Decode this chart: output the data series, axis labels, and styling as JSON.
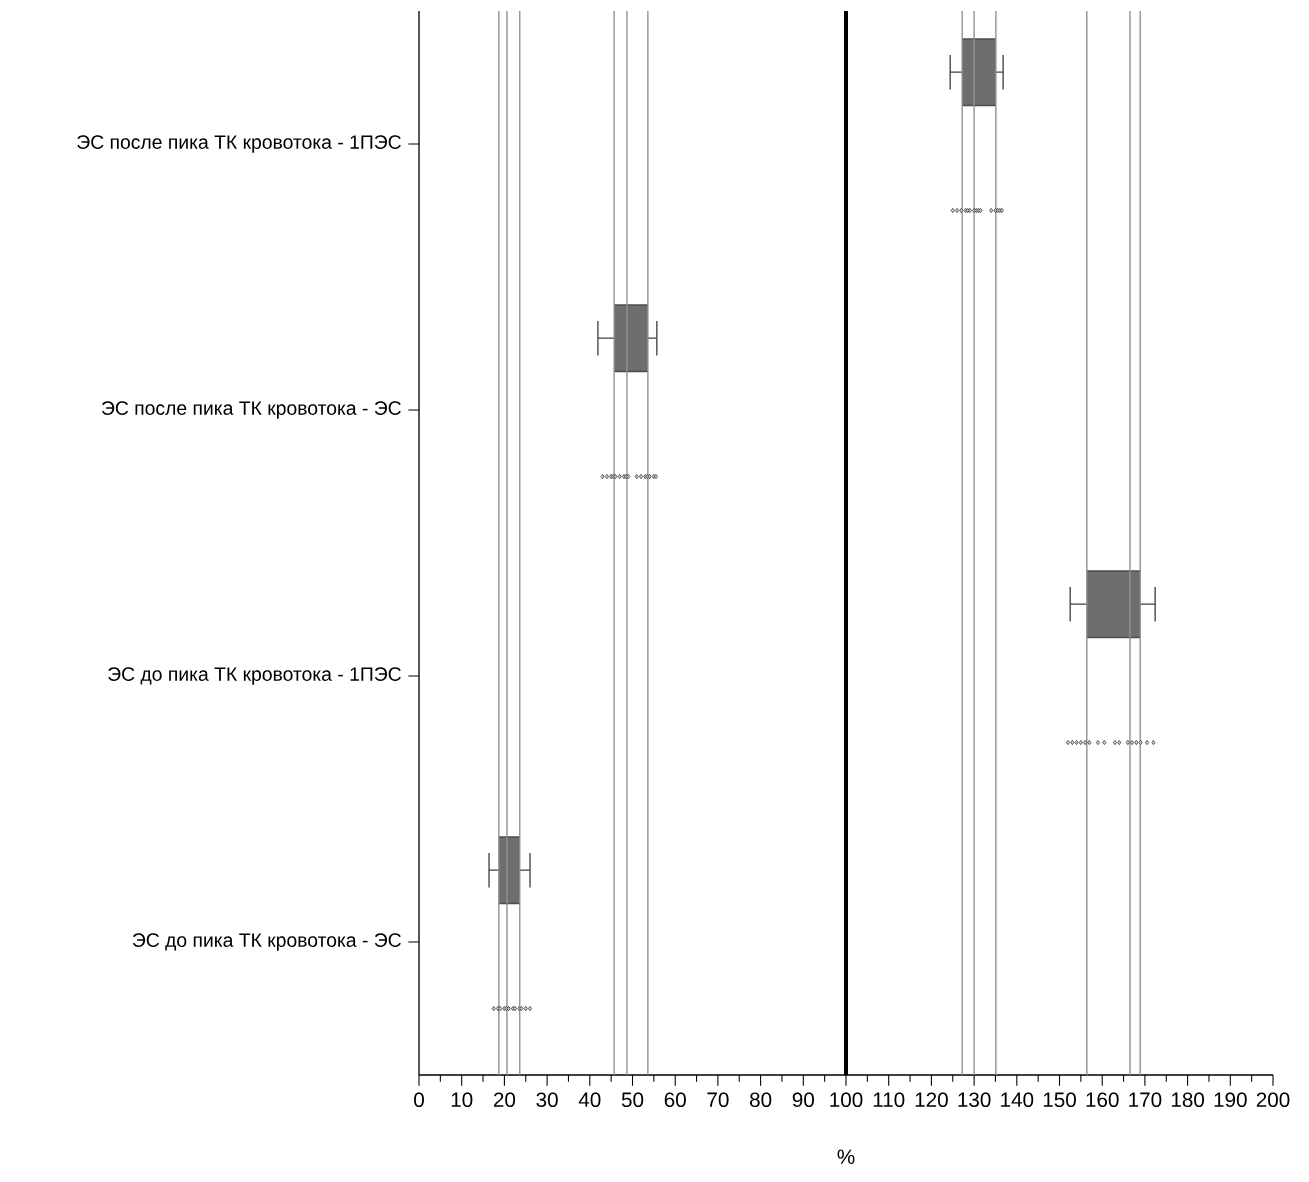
{
  "chart_data": {
    "type": "box",
    "orientation": "horizontal",
    "xlabel": "%",
    "categories": [
      "ЭС после пика ТК кровотока - 1ПЭС",
      "ЭС после пика ТК кровотока - ЭС",
      "ЭС до пика ТК кровотока - 1ПЭС",
      "ЭС до пика ТК кровотока - ЭС"
    ],
    "xlim": [
      0,
      200
    ],
    "xticks": [
      0,
      10,
      20,
      30,
      40,
      50,
      60,
      70,
      80,
      90,
      100,
      110,
      120,
      130,
      140,
      150,
      160,
      170,
      180,
      190,
      200
    ],
    "series": [
      {
        "color": "#6e6e6e",
        "boxes": [
          {
            "low": 124.4,
            "q1": 127.2,
            "median": 130,
            "q3": 135.1,
            "high": 136.8
          },
          {
            "low": 41.9,
            "q1": 45.7,
            "median": 48.7,
            "q3": 53.6,
            "high": 55.7
          },
          {
            "low": 152.5,
            "q1": 156.4,
            "median": 166.5,
            "q3": 168.9,
            "high": 172.4
          },
          {
            "low": 16.4,
            "q1": 18.7,
            "median": 20.6,
            "q3": 23.6,
            "high": 26
          }
        ]
      },
      {
        "type": "scatter",
        "color": "#d4d4d4",
        "marker": "diamond",
        "x": [
          "ЭС после пика ТК кровотока - 1ПЭС",
          "ЭС после пика ТК кровотока - 1ПЭС",
          "ЭС после пика ТК кровотока - 1ПЭС",
          "ЭС после пика ТК кровотока - 1ПЭС",
          "ЭС после пика ТК кровотока - 1ПЭС",
          "ЭС после пика ТК кровотока - 1ПЭС",
          "ЭС после пика ТК кровотока - 1ПЭС",
          "ЭС после пика ТК кровотока - 1ПЭС",
          "ЭС после пика ТК кровотока - 1ПЭС",
          "ЭС после пика ТК кровотока - 1ПЭС",
          "ЭС после пика ТК кровотока - 1ПЭС",
          "ЭС после пика ТК кровотока - 1ПЭС",
          "ЭС после пика ТК кровотока - 1ПЭС",
          "ЭС после пика ТК кровотока - 1ПЭС",
          "ЭС после пика ТК кровотока - 1ПЭС",
          "ЭС после пика ТК кровотока - ЭС",
          "ЭС после пика ТК кровотока - ЭС",
          "ЭС после пика ТК кровотока - ЭС",
          "ЭС после пика ТК кровотока - ЭС",
          "ЭС после пика ТК кровотока - ЭС",
          "ЭС после пика ТК кровотока - ЭС",
          "ЭС после пика ТК кровотока - ЭС",
          "ЭС после пика ТК кровотока - ЭС",
          "ЭС после пика ТК кровотока - ЭС",
          "ЭС после пика ТК кровотока - ЭС",
          "ЭС после пика ТК кровотока - ЭС",
          "ЭС после пика ТК кровотока - ЭС",
          "ЭС после пика ТК кровотока - ЭС",
          "ЭС после пика ТК кровотока - ЭС",
          "ЭС после пика ТК кровотока - ЭС",
          "ЭС после пика ТК кровотока - ЭС",
          "ЭС до пика ТК кровотока - 1ПЭС",
          "ЭС до пика ТК кровотока - 1ПЭС",
          "ЭС до пика ТК кровотока - 1ПЭС",
          "ЭС до пика ТК кровотока - 1ПЭС",
          "ЭС до пика ТК кровотока - 1ПЭС",
          "ЭС до пика ТК кровотока - 1ПЭС",
          "ЭС до пика ТК кровотока - 1ПЭС",
          "ЭС до пика ТК кровотока - 1ПЭС",
          "ЭС до пика ТК кровотока - 1ПЭС",
          "ЭС до пика ТК кровотока - 1ПЭС",
          "ЭС до пика ТК кровотока - 1ПЭС",
          "ЭС до пика ТК кровотока - 1ПЭС",
          "ЭС до пика ТК кровотока - 1ПЭС",
          "ЭС до пика ТК кровотока - 1ПЭС",
          "ЭС до пика ТК кровотока - 1ПЭС",
          "ЭС до пика ТК кровотока - 1ПЭС",
          "ЭС до пика ТК кровотока - ЭС",
          "ЭС до пика ТК кровотока - ЭС",
          "ЭС до пика ТК кровотока - ЭС",
          "ЭС до пика ТК кровотока - ЭС",
          "ЭС до пика ТК кровотока - ЭС",
          "ЭС до пика ТК кровотока - ЭС",
          "ЭС до пика ТК кровотока - ЭС",
          "ЭС до пика ТК кровотока - ЭС",
          "ЭС до пика ТК кровотока - ЭС",
          "ЭС до пика ТК кровотока - ЭС",
          "ЭС до пика ТК кровотока - ЭС",
          "ЭС до пика ТК кровотока - ЭС"
        ],
        "values": [
          125,
          126,
          127,
          128,
          128.5,
          129,
          130,
          130.5,
          131,
          131.5,
          134,
          135,
          135.5,
          136,
          136.5,
          43,
          44,
          45,
          45.5,
          46,
          47,
          48,
          48.5,
          49,
          51,
          52,
          53,
          53.5,
          54,
          55,
          55.5,
          152,
          153,
          154,
          155,
          156,
          157,
          159,
          160.5,
          163,
          164,
          166,
          167,
          168,
          169,
          170.5,
          172,
          17.5,
          18.5,
          19,
          20,
          20.5,
          21,
          22,
          22.5,
          23.5,
          24,
          25,
          26
        ]
      }
    ],
    "ref_lines": [
      {
        "axis": "x",
        "value": 100,
        "color": "#000000"
      },
      {
        "axis": "x",
        "value": 127.2,
        "color": "#8c8c8c"
      },
      {
        "axis": "x",
        "value": 130,
        "color": "#8c8c8c"
      },
      {
        "axis": "x",
        "value": 135.1,
        "color": "#8c8c8c"
      },
      {
        "axis": "x",
        "value": 45.7,
        "color": "#8c8c8c"
      },
      {
        "axis": "x",
        "value": 48.7,
        "color": "#8c8c8c"
      },
      {
        "axis": "x",
        "value": 53.6,
        "color": "#8c8c8c"
      },
      {
        "axis": "x",
        "value": 156.4,
        "color": "#8c8c8c"
      },
      {
        "axis": "x",
        "value": 166.5,
        "color": "#8c8c8c"
      },
      {
        "axis": "x",
        "value": 168.9,
        "color": "#8c8c8c"
      },
      {
        "axis": "x",
        "value": 18.7,
        "color": "#8c8c8c"
      },
      {
        "axis": "x",
        "value": 20.6,
        "color": "#8c8c8c"
      },
      {
        "axis": "x",
        "value": 23.6,
        "color": "#8c8c8c"
      }
    ]
  }
}
